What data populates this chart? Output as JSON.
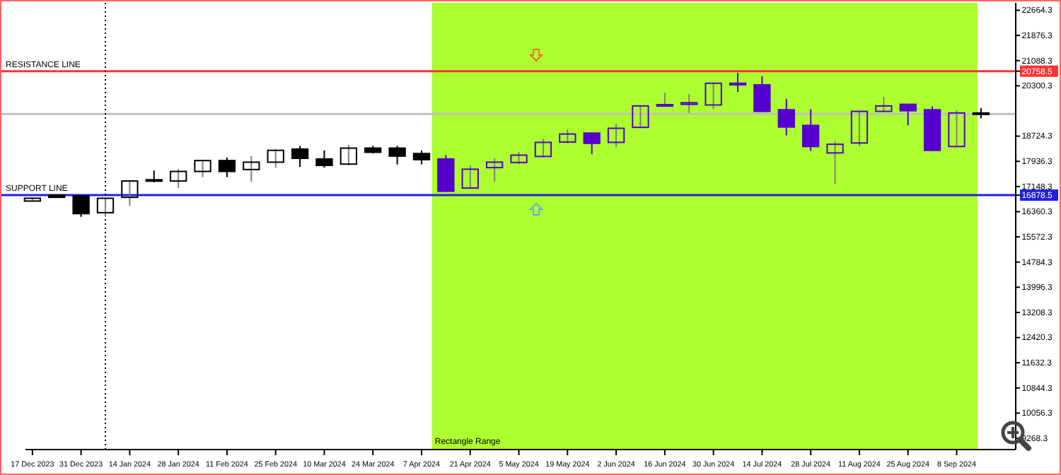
{
  "chart_data": {
    "type": "candlestick",
    "x": [
      "2023-12-17",
      "2023-12-24",
      "2023-12-31",
      "2024-01-07",
      "2024-01-14",
      "2024-01-21",
      "2024-01-28",
      "2024-02-04",
      "2024-02-11",
      "2024-02-18",
      "2024-02-25",
      "2024-03-03",
      "2024-03-10",
      "2024-03-17",
      "2024-03-24",
      "2024-03-31",
      "2024-04-07",
      "2024-04-14",
      "2024-04-21",
      "2024-04-28",
      "2024-05-05",
      "2024-05-12",
      "2024-05-19",
      "2024-05-26",
      "2024-06-02",
      "2024-06-09",
      "2024-06-16",
      "2024-06-23",
      "2024-06-30",
      "2024-07-07",
      "2024-07-14",
      "2024-07-21",
      "2024-07-28",
      "2024-08-04",
      "2024-08-11",
      "2024-08-18",
      "2024-08-25",
      "2024-09-01",
      "2024-09-08",
      "2024-09-15"
    ],
    "ohlc": [
      [
        16693,
        16800,
        16680,
        16781
      ],
      [
        16880,
        16900,
        16790,
        16810
      ],
      [
        16856,
        16880,
        16200,
        16300
      ],
      [
        16330,
        16790,
        16210,
        16780
      ],
      [
        16810,
        17330,
        16550,
        17320
      ],
      [
        17360,
        17650,
        17280,
        17340
      ],
      [
        17320,
        17690,
        17100,
        17620
      ],
      [
        17620,
        17990,
        17440,
        17960
      ],
      [
        17960,
        18057,
        17440,
        17620
      ],
      [
        17680,
        18100,
        17300,
        17910
      ],
      [
        17910,
        18320,
        17740,
        18280
      ],
      [
        18320,
        18420,
        17760,
        18030
      ],
      [
        18010,
        18280,
        17740,
        17810
      ],
      [
        17850,
        18450,
        17810,
        18350
      ],
      [
        18350,
        18420,
        18180,
        18220
      ],
      [
        18350,
        18420,
        17840,
        18100
      ],
      [
        18180,
        18280,
        17840,
        17990
      ],
      [
        18010,
        18130,
        16990,
        17000
      ],
      [
        17100,
        17810,
        17090,
        17690
      ],
      [
        17740,
        18030,
        17300,
        17910
      ],
      [
        17900,
        18230,
        17850,
        18130
      ],
      [
        18090,
        18640,
        18060,
        18530
      ],
      [
        18540,
        18940,
        18500,
        18790
      ],
      [
        18820,
        18850,
        18160,
        18500
      ],
      [
        18530,
        19110,
        18380,
        18970
      ],
      [
        19000,
        19690,
        18970,
        19670
      ],
      [
        19680,
        20080,
        19660,
        19710
      ],
      [
        19720,
        20040,
        19450,
        19770
      ],
      [
        19700,
        20390,
        19570,
        20380
      ],
      [
        20380,
        20700,
        20110,
        20330
      ],
      [
        20330,
        20600,
        19480,
        19500
      ],
      [
        19550,
        19890,
        18750,
        19010
      ],
      [
        19060,
        19570,
        18260,
        18400
      ],
      [
        18200,
        18570,
        17220,
        18470
      ],
      [
        18510,
        19520,
        18410,
        19500
      ],
      [
        19500,
        19950,
        19490,
        19670
      ],
      [
        19720,
        19740,
        19060,
        19520
      ],
      [
        19550,
        19660,
        18270,
        18280
      ],
      [
        18400,
        19540,
        18380,
        19450
      ],
      [
        19450,
        19600,
        19280,
        19420
      ]
    ],
    "colors": [
      "#000000",
      "#000000",
      "#000000",
      "#000000",
      "#000000",
      "#000000",
      "#000000",
      "#000000",
      "#000000",
      "#000000",
      "#000000",
      "#000000",
      "#000000",
      "#000000",
      "#000000",
      "#000000",
      "#000000",
      "#5500cc",
      "#5500cc",
      "#5500cc",
      "#5500cc",
      "#5500cc",
      "#5500cc",
      "#5500cc",
      "#5500cc",
      "#5500cc",
      "#5500cc",
      "#5500cc",
      "#5500cc",
      "#5500cc",
      "#5500cc",
      "#5500cc",
      "#5500cc",
      "#5500cc",
      "#5500cc",
      "#5500cc",
      "#5500cc",
      "#5500cc",
      "#5500cc",
      "#000000"
    ],
    "xlim": [
      "2023-12-15",
      "2024-09-25"
    ],
    "xticks": [
      {
        "value": "2023-12-17",
        "label": "17 Dec 2023"
      },
      {
        "value": "2023-12-31",
        "label": "31 Dec 2023"
      },
      {
        "value": "2024-01-14",
        "label": "14 Jan 2024"
      },
      {
        "value": "2024-01-28",
        "label": "28 Jan 2024"
      },
      {
        "value": "2024-02-11",
        "label": "11 Feb 2024"
      },
      {
        "value": "2024-02-25",
        "label": "25 Feb 2024"
      },
      {
        "value": "2024-03-10",
        "label": "10 Mar 2024"
      },
      {
        "value": "2024-03-24",
        "label": "24 Mar 2024"
      },
      {
        "value": "2024-04-07",
        "label": "7 Apr 2024"
      },
      {
        "value": "2024-04-21",
        "label": "21 Apr 2024"
      },
      {
        "value": "2024-05-05",
        "label": "5 May 2024"
      },
      {
        "value": "2024-05-19",
        "label": "19 May 2024"
      },
      {
        "value": "2024-06-02",
        "label": "2 Jun 2024"
      },
      {
        "value": "2024-06-16",
        "label": "16 Jun 2024"
      },
      {
        "value": "2024-06-30",
        "label": "30 Jun 2024"
      },
      {
        "value": "2024-07-14",
        "label": "14 Jul 2024"
      },
      {
        "value": "2024-07-28",
        "label": "28 Jul 2024"
      },
      {
        "value": "2024-08-11",
        "label": "11 Aug 2024"
      },
      {
        "value": "2024-08-25",
        "label": "25 Aug 2024"
      },
      {
        "value": "2024-09-08",
        "label": "8 Sep 2024"
      }
    ],
    "ylim": [
      8916,
      22897
    ],
    "yticks": [
      22664.3,
      21876.3,
      21088.3,
      20758.5,
      20300.3,
      18724.3,
      17936.3,
      17148.3,
      16878.5,
      16360.3,
      15572.3,
      14784.3,
      13996.3,
      13208.3,
      12420.3,
      11632.3,
      10844.3,
      10056.3,
      9268.3
    ],
    "ref_lines": [
      {
        "axis": "y",
        "value": 20758.5,
        "label": "RESISTANCE LINE",
        "color": "#ff3333"
      },
      {
        "axis": "y",
        "value": 16878.5,
        "label": "SUPPORT LINE",
        "color": "#2222dd"
      },
      {
        "axis": "y",
        "value": 19420,
        "color": "#c0c0c0"
      },
      {
        "axis": "x",
        "value": "2024-01-07",
        "color": "#000000",
        "line_style": "dotted"
      }
    ],
    "bands": [
      {
        "axis": "x",
        "from": "2024-04-10",
        "to": "2024-09-14",
        "label": "Rectangle Range",
        "color": "#adff2f"
      }
    ]
  }
}
